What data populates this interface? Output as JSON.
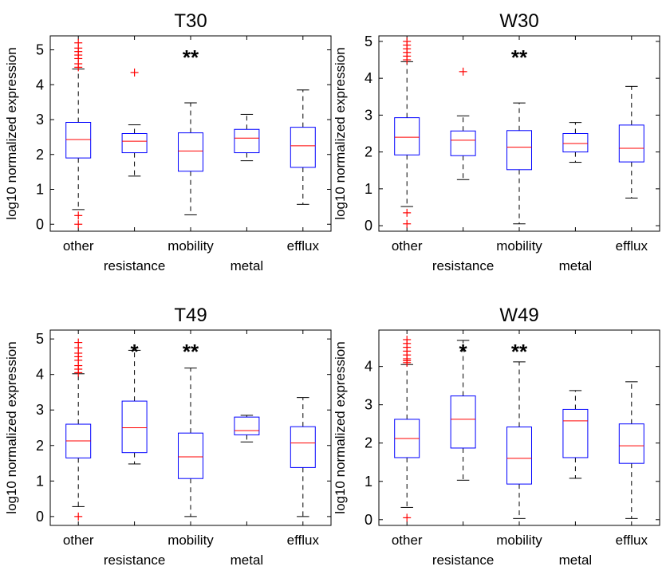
{
  "chart_data": [
    {
      "type": "boxplot",
      "title": "T30",
      "ylabel": "log10 normalized expression",
      "ylim": [
        -0.2,
        5.4
      ],
      "yticks": [
        0,
        1,
        2,
        3,
        4,
        5
      ],
      "categories": [
        "other",
        "resistance",
        "mobility",
        "metal",
        "efflux"
      ],
      "boxes": [
        {
          "whisker_low": 0.42,
          "q1": 1.9,
          "median": 2.43,
          "q3": 2.92,
          "whisker_high": 4.45,
          "outliers": [
            0.0,
            0.25,
            4.5,
            4.6,
            4.75,
            4.85,
            4.95,
            5.05,
            5.2
          ]
        },
        {
          "whisker_low": 1.38,
          "q1": 2.05,
          "median": 2.38,
          "q3": 2.6,
          "whisker_high": 2.85,
          "outliers": [
            4.35
          ]
        },
        {
          "whisker_low": 0.27,
          "q1": 1.52,
          "median": 2.1,
          "q3": 2.62,
          "whisker_high": 3.48,
          "outliers": []
        },
        {
          "whisker_low": 1.82,
          "q1": 2.05,
          "median": 2.47,
          "q3": 2.72,
          "whisker_high": 3.15,
          "outliers": []
        },
        {
          "whisker_low": 0.57,
          "q1": 1.63,
          "median": 2.25,
          "q3": 2.78,
          "whisker_high": 3.85,
          "outliers": []
        }
      ],
      "annotations": [
        {
          "category": "mobility",
          "text": "**"
        }
      ]
    },
    {
      "type": "boxplot",
      "title": "W30",
      "ylabel": "log10 normalized expression",
      "ylim": [
        -0.15,
        5.15
      ],
      "yticks": [
        0,
        1,
        2,
        3,
        4,
        5
      ],
      "categories": [
        "other",
        "resistance",
        "mobility",
        "metal",
        "efflux"
      ],
      "boxes": [
        {
          "whisker_low": 0.52,
          "q1": 1.92,
          "median": 2.4,
          "q3": 2.93,
          "whisker_high": 4.45,
          "outliers": [
            0.05,
            0.35,
            4.5,
            4.6,
            4.7,
            4.8,
            4.9,
            5.0
          ]
        },
        {
          "whisker_low": 1.25,
          "q1": 1.9,
          "median": 2.32,
          "q3": 2.57,
          "whisker_high": 2.98,
          "outliers": [
            4.18
          ]
        },
        {
          "whisker_low": 0.05,
          "q1": 1.52,
          "median": 2.13,
          "q3": 2.58,
          "whisker_high": 3.33,
          "outliers": []
        },
        {
          "whisker_low": 1.72,
          "q1": 2.0,
          "median": 2.23,
          "q3": 2.5,
          "whisker_high": 2.8,
          "outliers": []
        },
        {
          "whisker_low": 0.75,
          "q1": 1.73,
          "median": 2.1,
          "q3": 2.73,
          "whisker_high": 3.78,
          "outliers": []
        }
      ],
      "annotations": [
        {
          "category": "mobility",
          "text": "**"
        }
      ]
    },
    {
      "type": "boxplot",
      "title": "T49",
      "ylabel": "log10 normalized expression",
      "ylim": [
        -0.25,
        5.25
      ],
      "yticks": [
        0,
        1,
        2,
        3,
        4,
        5
      ],
      "categories": [
        "other",
        "resistance",
        "mobility",
        "metal",
        "efflux"
      ],
      "boxes": [
        {
          "whisker_low": 0.28,
          "q1": 1.65,
          "median": 2.13,
          "q3": 2.6,
          "whisker_high": 4.02,
          "outliers": [
            0.0,
            4.05,
            4.15,
            4.25,
            4.4,
            4.5,
            4.6,
            4.75,
            4.9
          ]
        },
        {
          "whisker_low": 1.48,
          "q1": 1.8,
          "median": 2.5,
          "q3": 3.25,
          "whisker_high": 4.68,
          "outliers": []
        },
        {
          "whisker_low": 0.0,
          "q1": 1.07,
          "median": 1.68,
          "q3": 2.35,
          "whisker_high": 4.18,
          "outliers": []
        },
        {
          "whisker_low": 2.1,
          "q1": 2.3,
          "median": 2.42,
          "q3": 2.8,
          "whisker_high": 2.85,
          "outliers": []
        },
        {
          "whisker_low": 0.0,
          "q1": 1.38,
          "median": 2.07,
          "q3": 2.53,
          "whisker_high": 3.35,
          "outliers": []
        }
      ],
      "annotations": [
        {
          "category": "resistance",
          "text": "*"
        },
        {
          "category": "mobility",
          "text": "**"
        }
      ]
    },
    {
      "type": "boxplot",
      "title": "W49",
      "ylabel": "log10 normalized expression",
      "ylim": [
        -0.15,
        4.95
      ],
      "yticks": [
        0,
        1,
        2,
        3,
        4
      ],
      "categories": [
        "other",
        "resistance",
        "mobility",
        "metal",
        "efflux"
      ],
      "boxes": [
        {
          "whisker_low": 0.32,
          "q1": 1.62,
          "median": 2.12,
          "q3": 2.62,
          "whisker_high": 4.05,
          "outliers": [
            0.05,
            4.1,
            4.15,
            4.2,
            4.3,
            4.4,
            4.5,
            4.6,
            4.7
          ]
        },
        {
          "whisker_low": 1.03,
          "q1": 1.87,
          "median": 2.62,
          "q3": 3.23,
          "whisker_high": 4.68,
          "outliers": []
        },
        {
          "whisker_low": 0.03,
          "q1": 0.93,
          "median": 1.6,
          "q3": 2.42,
          "whisker_high": 4.12,
          "outliers": []
        },
        {
          "whisker_low": 1.08,
          "q1": 1.62,
          "median": 2.58,
          "q3": 2.88,
          "whisker_high": 3.37,
          "outliers": []
        },
        {
          "whisker_low": 0.03,
          "q1": 1.47,
          "median": 1.93,
          "q3": 2.5,
          "whisker_high": 3.6,
          "outliers": []
        }
      ],
      "annotations": [
        {
          "category": "resistance",
          "text": "*"
        },
        {
          "category": "mobility",
          "text": "**"
        }
      ]
    }
  ],
  "colors": {
    "box": "#0000ff",
    "median": "#ff0000",
    "outlier": "#ff0000",
    "whisker": "#000000",
    "axes": "#000000",
    "background": "#ffffff"
  }
}
